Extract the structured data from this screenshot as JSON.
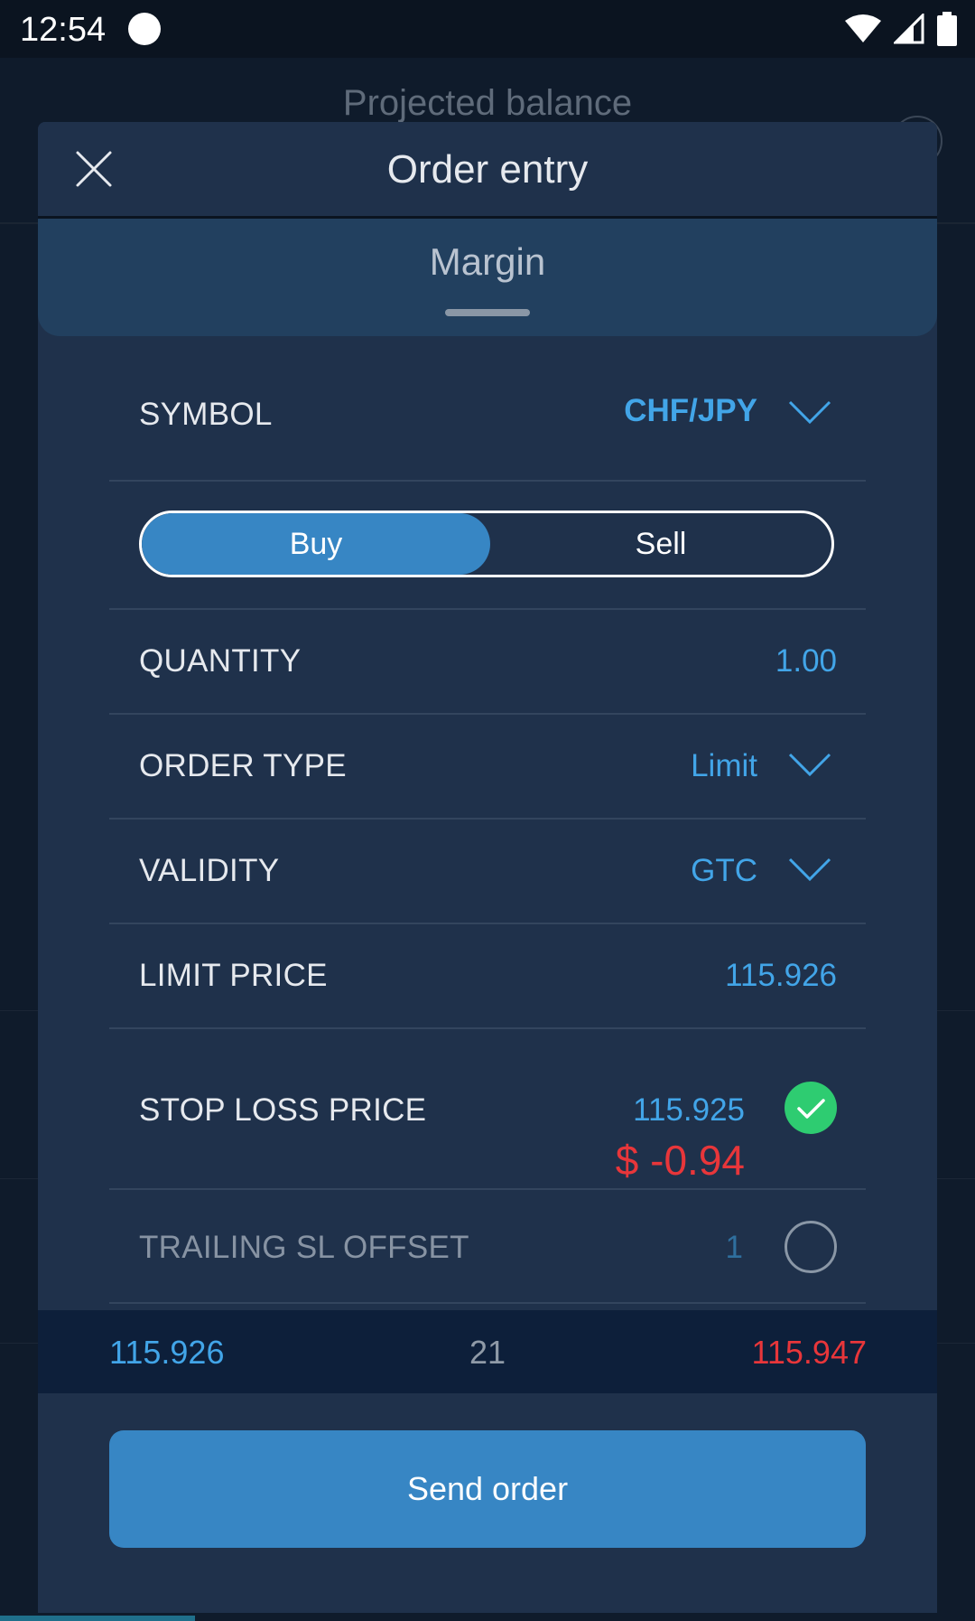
{
  "status_bar": {
    "time": "12:54"
  },
  "background": {
    "title": "Projected balance"
  },
  "modal": {
    "title": "Order entry",
    "tab": "Margin"
  },
  "form": {
    "symbol": {
      "label": "SYMBOL",
      "value": "CHF/JPY"
    },
    "side": {
      "buy": "Buy",
      "sell": "Sell",
      "selected": "Buy"
    },
    "quantity": {
      "label": "QUANTITY",
      "value": "1.00"
    },
    "order_type": {
      "label": "ORDER TYPE",
      "value": "Limit"
    },
    "validity": {
      "label": "VALIDITY",
      "value": "GTC"
    },
    "limit_price": {
      "label": "LIMIT PRICE",
      "value": "115.926"
    },
    "stop_loss": {
      "label": "STOP LOSS PRICE",
      "value": "115.925",
      "pnl": "$ -0.94",
      "enabled": true
    },
    "trailing_sl": {
      "label": "TRAILING SL OFFSET",
      "value": "1",
      "enabled": false
    }
  },
  "quote": {
    "bid": "115.926",
    "spread": "21",
    "ask": "115.947"
  },
  "send_button": "Send order",
  "colors": {
    "accent": "#42a5e8",
    "button": "#3786c4",
    "negative": "#e8363a",
    "success": "#2ecc71",
    "panel": "#1f314b"
  }
}
